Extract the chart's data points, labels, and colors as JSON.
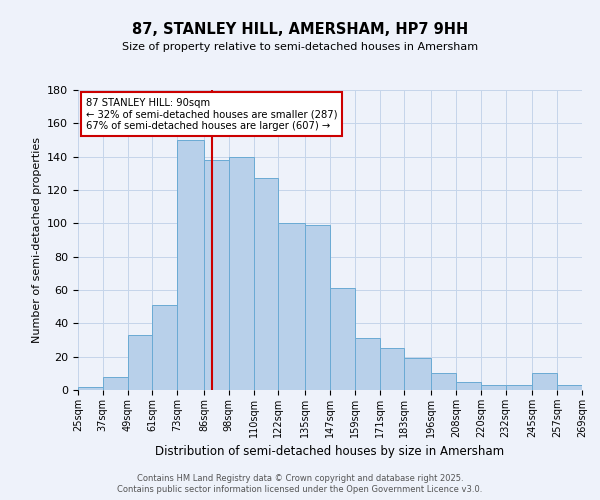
{
  "title": "87, STANLEY HILL, AMERSHAM, HP7 9HH",
  "subtitle": "Size of property relative to semi-detached houses in Amersham",
  "xlabel": "Distribution of semi-detached houses by size in Amersham",
  "ylabel": "Number of semi-detached properties",
  "bins": [
    25,
    37,
    49,
    61,
    73,
    86,
    98,
    110,
    122,
    135,
    147,
    159,
    171,
    183,
    196,
    208,
    220,
    232,
    245,
    257,
    269
  ],
  "counts": [
    2,
    8,
    33,
    51,
    150,
    138,
    140,
    127,
    100,
    99,
    61,
    31,
    25,
    19,
    10,
    5,
    3,
    3,
    10,
    3
  ],
  "bar_color": "#b8d0ea",
  "bar_edge_color": "#6aaad4",
  "property_value": 90,
  "marker_line_color": "#cc0000",
  "annotation_title": "87 STANLEY HILL: 90sqm",
  "annotation_line1": "← 32% of semi-detached houses are smaller (287)",
  "annotation_line2": "67% of semi-detached houses are larger (607) →",
  "annotation_box_color": "#ffffff",
  "annotation_box_edge": "#cc0000",
  "ylim": [
    0,
    180
  ],
  "yticks": [
    0,
    20,
    40,
    60,
    80,
    100,
    120,
    140,
    160,
    180
  ],
  "tick_labels": [
    "25sqm",
    "37sqm",
    "49sqm",
    "61sqm",
    "73sqm",
    "86sqm",
    "98sqm",
    "110sqm",
    "122sqm",
    "135sqm",
    "147sqm",
    "159sqm",
    "171sqm",
    "183sqm",
    "196sqm",
    "208sqm",
    "220sqm",
    "232sqm",
    "245sqm",
    "257sqm",
    "269sqm"
  ],
  "footer_line1": "Contains HM Land Registry data © Crown copyright and database right 2025.",
  "footer_line2": "Contains public sector information licensed under the Open Government Licence v3.0.",
  "background_color": "#eef2fa",
  "grid_color": "#c5d5ea"
}
